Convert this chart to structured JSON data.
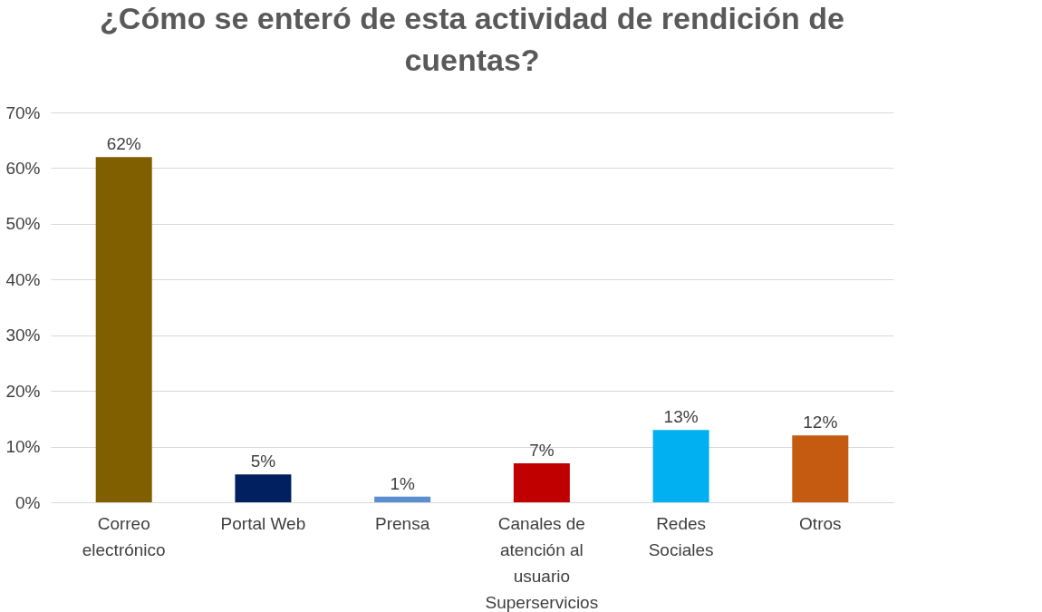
{
  "chart_data": {
    "type": "bar",
    "title": "¿Cómo se enteró de esta actividad de rendición de cuentas?",
    "categories": [
      "Correo electrónico",
      "Portal Web",
      "Prensa",
      "Canales de atención al usuario Superservicios",
      "Redes Sociales",
      "Otros"
    ],
    "values": [
      62,
      5,
      1,
      7,
      13,
      12
    ],
    "colors": [
      "#7f5f00",
      "#002060",
      "#5b8fd0",
      "#c00000",
      "#00b0f0",
      "#c55a11"
    ],
    "value_labels": [
      "62%",
      "5%",
      "1%",
      "7%",
      "13%",
      "12%"
    ],
    "ylim": [
      0,
      70
    ],
    "yticks": [
      {
        "value": 0,
        "label": "0%"
      },
      {
        "value": 10,
        "label": "10%"
      },
      {
        "value": 20,
        "label": "20%"
      },
      {
        "value": 30,
        "label": "30%"
      },
      {
        "value": 40,
        "label": "40%"
      },
      {
        "value": 50,
        "label": "50%"
      },
      {
        "value": 60,
        "label": "60%"
      },
      {
        "value": 70,
        "label": "70%"
      }
    ],
    "grid": "y"
  }
}
